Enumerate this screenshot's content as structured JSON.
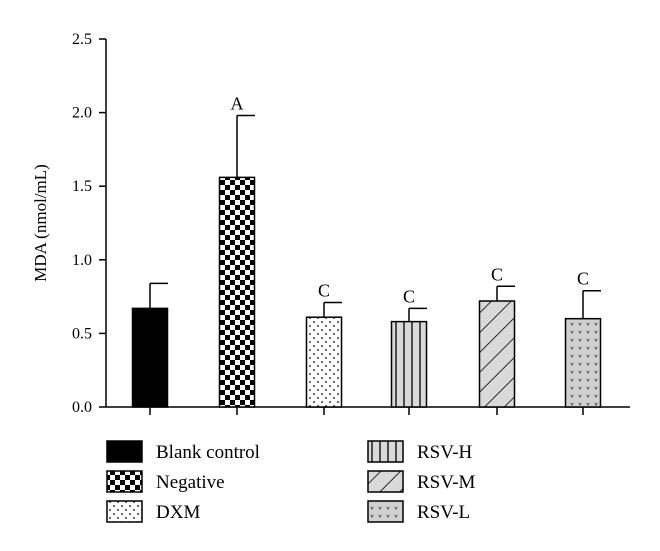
{
  "chart_data": {
    "type": "bar",
    "ylabel": "MDA (nmol/mL)",
    "ylim": [
      0,
      2.5
    ],
    "yticks": [
      "0.0",
      "0.5",
      "1.0",
      "1.5",
      "2.0",
      "2.5"
    ],
    "grid": false,
    "legend_placement": "bottom",
    "categories": [
      "Blank control",
      "Negative",
      "DXM",
      "RSV-H",
      "RSV-M",
      "RSV-L"
    ],
    "values": [
      0.67,
      1.56,
      0.61,
      0.58,
      0.72,
      0.6
    ],
    "errors": [
      0.17,
      0.42,
      0.1,
      0.09,
      0.1,
      0.19
    ],
    "significance": [
      "",
      "A",
      "C",
      "C",
      "C",
      "C"
    ],
    "patterns": [
      "solid",
      "checker",
      "dots",
      "vertical-lines",
      "diagonal-lines",
      "hearts"
    ]
  }
}
